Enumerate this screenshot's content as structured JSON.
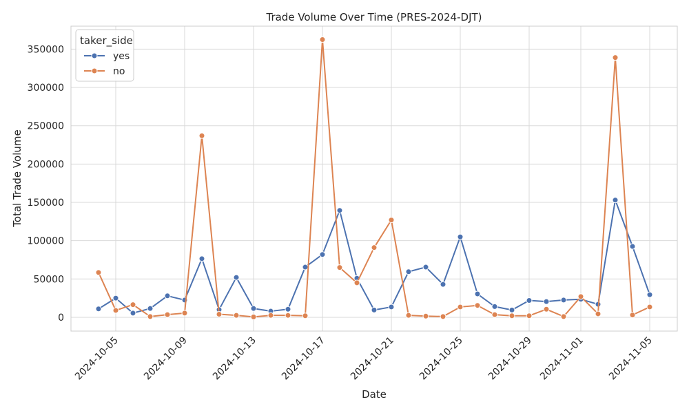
{
  "chart_data": {
    "type": "line",
    "title": "Trade Volume Over Time (PRES-2024-DJT)",
    "xlabel": "Date",
    "ylabel": "Total Trade Volume",
    "ylim": [
      -18000,
      380000
    ],
    "yticks": [
      0,
      50000,
      100000,
      150000,
      200000,
      250000,
      300000,
      350000
    ],
    "ytick_labels": [
      "0",
      "50000",
      "100000",
      "150000",
      "200000",
      "250000",
      "300000",
      "350000"
    ],
    "xtick_labels": [
      "2024-10-05",
      "2024-10-09",
      "2024-10-13",
      "2024-10-17",
      "2024-10-21",
      "2024-10-25",
      "2024-10-29",
      "2024-11-01",
      "2024-11-05"
    ],
    "xtick_dates": [
      "2024-10-05",
      "2024-10-09",
      "2024-10-13",
      "2024-10-17",
      "2024-10-21",
      "2024-10-25",
      "2024-10-29",
      "2024-11-01",
      "2024-11-05"
    ],
    "x": [
      "2024-10-04",
      "2024-10-05",
      "2024-10-06",
      "2024-10-07",
      "2024-10-08",
      "2024-10-09",
      "2024-10-10",
      "2024-10-11",
      "2024-10-12",
      "2024-10-13",
      "2024-10-14",
      "2024-10-15",
      "2024-10-16",
      "2024-10-17",
      "2024-10-18",
      "2024-10-19",
      "2024-10-20",
      "2024-10-21",
      "2024-10-22",
      "2024-10-23",
      "2024-10-24",
      "2024-10-25",
      "2024-10-26",
      "2024-10-27",
      "2024-10-28",
      "2024-10-29",
      "2024-10-30",
      "2024-10-31",
      "2024-11-01",
      "2024-11-02",
      "2024-11-03",
      "2024-11-04",
      "2024-11-05"
    ],
    "grid": true,
    "legend": {
      "title": "taker_side",
      "position": "upper-left"
    },
    "series": [
      {
        "name": "yes",
        "color": "#4c72b0",
        "values": [
          11000,
          25000,
          5500,
          11500,
          28000,
          22500,
          76500,
          10000,
          52000,
          11500,
          8000,
          10500,
          65500,
          82000,
          139500,
          51000,
          9500,
          13500,
          59500,
          65500,
          43000,
          105000,
          30500,
          14000,
          9500,
          22000,
          20500,
          22500,
          23500,
          17000,
          153000,
          92500,
          29500
        ]
      },
      {
        "name": "no",
        "color": "#dd8452",
        "values": [
          58500,
          9000,
          16500,
          1000,
          3500,
          5500,
          237000,
          4000,
          2500,
          500,
          2500,
          2500,
          2000,
          362500,
          65000,
          45000,
          91000,
          127000,
          2500,
          1500,
          1000,
          13500,
          15500,
          3500,
          2000,
          2000,
          10500,
          1000,
          27000,
          4500,
          339000,
          3000,
          13500
        ]
      }
    ]
  }
}
